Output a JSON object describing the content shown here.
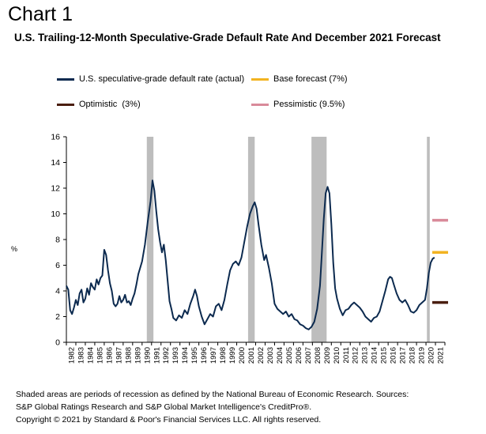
{
  "header": {
    "chart_label": "Chart 1",
    "title": "U.S. Trailing-12-Month Speculative-Grade Default Rate And December 2021 Forecast"
  },
  "footnote": {
    "line1": "Shaded areas are periods of recession as defined by the National Bureau of Economic Research. Sources:",
    "line2": "S&P Global Ratings Research and S&P Global Market Intelligence's CreditPro®.",
    "line3": "Copyright © 2021 by Standard & Poor's Financial Services LLC. All rights reserved."
  },
  "chart_data": {
    "type": "line",
    "ylabel": "%",
    "ylim": [
      0,
      16
    ],
    "yticks": [
      0,
      2,
      4,
      6,
      8,
      10,
      12,
      14,
      16
    ],
    "xlim": [
      1982,
      2022
    ],
    "xticks": [
      "1982",
      "1983",
      "1984",
      "1985",
      "1986",
      "1987",
      "1988",
      "1989",
      "1990",
      "1991",
      "1992",
      "1993",
      "1994",
      "1995",
      "1996",
      "1997",
      "1998",
      "1999",
      "2000",
      "2001",
      "2002",
      "2003",
      "2004",
      "2005",
      "2006",
      "2007",
      "2008",
      "2009",
      "2010",
      "2011",
      "2012",
      "2013",
      "2014",
      "2015",
      "2016",
      "2017",
      "2018",
      "2019",
      "2020",
      "2021"
    ],
    "grid": false,
    "legend_position": "top",
    "recessions": [
      [
        1990.5,
        1991.2
      ],
      [
        2001.2,
        2001.9
      ],
      [
        2007.9,
        2009.5
      ],
      [
        2020.1,
        2020.4
      ]
    ],
    "series": [
      {
        "name": "U.S. speculative-grade default rate (actual)",
        "color": "#0c2a4f",
        "points": [
          [
            1982.0,
            4.4
          ],
          [
            1982.2,
            4.1
          ],
          [
            1982.4,
            2.5
          ],
          [
            1982.6,
            2.2
          ],
          [
            1982.8,
            2.7
          ],
          [
            1983.0,
            3.3
          ],
          [
            1983.2,
            2.9
          ],
          [
            1983.4,
            3.8
          ],
          [
            1983.6,
            4.1
          ],
          [
            1983.8,
            3.1
          ],
          [
            1984.0,
            3.4
          ],
          [
            1984.2,
            4.2
          ],
          [
            1984.4,
            3.7
          ],
          [
            1984.6,
            4.6
          ],
          [
            1984.8,
            4.3
          ],
          [
            1985.0,
            4.1
          ],
          [
            1985.2,
            4.9
          ],
          [
            1985.4,
            4.5
          ],
          [
            1985.6,
            5.0
          ],
          [
            1985.8,
            5.2
          ],
          [
            1986.0,
            7.2
          ],
          [
            1986.2,
            6.8
          ],
          [
            1986.4,
            5.6
          ],
          [
            1986.6,
            4.6
          ],
          [
            1986.8,
            4.0
          ],
          [
            1987.0,
            3.0
          ],
          [
            1987.2,
            2.8
          ],
          [
            1987.4,
            3.0
          ],
          [
            1987.6,
            3.6
          ],
          [
            1987.8,
            3.1
          ],
          [
            1988.0,
            3.3
          ],
          [
            1988.2,
            3.7
          ],
          [
            1988.4,
            3.1
          ],
          [
            1988.6,
            3.2
          ],
          [
            1988.8,
            2.9
          ],
          [
            1989.0,
            3.4
          ],
          [
            1989.2,
            3.8
          ],
          [
            1989.4,
            4.5
          ],
          [
            1989.6,
            5.3
          ],
          [
            1989.8,
            5.8
          ],
          [
            1990.0,
            6.3
          ],
          [
            1990.3,
            7.6
          ],
          [
            1990.6,
            9.4
          ],
          [
            1990.9,
            11.0
          ],
          [
            1991.1,
            12.6
          ],
          [
            1991.3,
            11.8
          ],
          [
            1991.5,
            10.2
          ],
          [
            1991.7,
            8.8
          ],
          [
            1991.9,
            7.8
          ],
          [
            1992.1,
            7.0
          ],
          [
            1992.3,
            7.6
          ],
          [
            1992.5,
            6.4
          ],
          [
            1992.7,
            4.8
          ],
          [
            1992.9,
            3.2
          ],
          [
            1993.1,
            2.6
          ],
          [
            1993.3,
            1.9
          ],
          [
            1993.6,
            1.7
          ],
          [
            1993.9,
            2.1
          ],
          [
            1994.2,
            1.9
          ],
          [
            1994.5,
            2.5
          ],
          [
            1994.8,
            2.2
          ],
          [
            1995.1,
            3.0
          ],
          [
            1995.4,
            3.6
          ],
          [
            1995.6,
            4.1
          ],
          [
            1995.8,
            3.6
          ],
          [
            1996.0,
            2.8
          ],
          [
            1996.3,
            2.0
          ],
          [
            1996.6,
            1.4
          ],
          [
            1996.9,
            1.8
          ],
          [
            1997.2,
            2.2
          ],
          [
            1997.5,
            2.0
          ],
          [
            1997.8,
            2.8
          ],
          [
            1998.1,
            3.0
          ],
          [
            1998.4,
            2.5
          ],
          [
            1998.7,
            3.3
          ],
          [
            1999.0,
            4.5
          ],
          [
            1999.3,
            5.6
          ],
          [
            1999.6,
            6.1
          ],
          [
            1999.9,
            6.3
          ],
          [
            2000.2,
            6.0
          ],
          [
            2000.5,
            6.6
          ],
          [
            2000.8,
            7.8
          ],
          [
            2001.1,
            9.0
          ],
          [
            2001.4,
            10.0
          ],
          [
            2001.7,
            10.6
          ],
          [
            2001.9,
            10.9
          ],
          [
            2002.1,
            10.4
          ],
          [
            2002.3,
            9.2
          ],
          [
            2002.6,
            7.6
          ],
          [
            2002.9,
            6.4
          ],
          [
            2003.1,
            6.8
          ],
          [
            2003.4,
            5.8
          ],
          [
            2003.7,
            4.6
          ],
          [
            2004.0,
            3.0
          ],
          [
            2004.3,
            2.6
          ],
          [
            2004.6,
            2.4
          ],
          [
            2004.9,
            2.2
          ],
          [
            2005.2,
            2.4
          ],
          [
            2005.5,
            2.0
          ],
          [
            2005.8,
            2.2
          ],
          [
            2006.1,
            1.8
          ],
          [
            2006.4,
            1.7
          ],
          [
            2006.7,
            1.4
          ],
          [
            2007.0,
            1.3
          ],
          [
            2007.3,
            1.1
          ],
          [
            2007.6,
            1.0
          ],
          [
            2007.9,
            1.2
          ],
          [
            2008.2,
            1.6
          ],
          [
            2008.5,
            2.6
          ],
          [
            2008.8,
            4.4
          ],
          [
            2009.0,
            7.0
          ],
          [
            2009.2,
            9.6
          ],
          [
            2009.4,
            11.6
          ],
          [
            2009.6,
            12.1
          ],
          [
            2009.8,
            11.6
          ],
          [
            2010.0,
            9.2
          ],
          [
            2010.2,
            6.2
          ],
          [
            2010.4,
            4.2
          ],
          [
            2010.6,
            3.4
          ],
          [
            2010.9,
            2.6
          ],
          [
            2011.2,
            2.1
          ],
          [
            2011.5,
            2.5
          ],
          [
            2011.8,
            2.6
          ],
          [
            2012.1,
            2.9
          ],
          [
            2012.4,
            3.1
          ],
          [
            2012.7,
            2.9
          ],
          [
            2013.0,
            2.7
          ],
          [
            2013.3,
            2.4
          ],
          [
            2013.6,
            2.0
          ],
          [
            2013.9,
            1.8
          ],
          [
            2014.2,
            1.6
          ],
          [
            2014.5,
            1.9
          ],
          [
            2014.8,
            2.0
          ],
          [
            2015.1,
            2.4
          ],
          [
            2015.4,
            3.2
          ],
          [
            2015.7,
            4.0
          ],
          [
            2016.0,
            4.9
          ],
          [
            2016.2,
            5.1
          ],
          [
            2016.4,
            5.0
          ],
          [
            2016.6,
            4.5
          ],
          [
            2016.9,
            3.8
          ],
          [
            2017.2,
            3.3
          ],
          [
            2017.5,
            3.1
          ],
          [
            2017.8,
            3.3
          ],
          [
            2018.1,
            2.9
          ],
          [
            2018.4,
            2.4
          ],
          [
            2018.7,
            2.3
          ],
          [
            2019.0,
            2.5
          ],
          [
            2019.3,
            2.9
          ],
          [
            2019.6,
            3.1
          ],
          [
            2019.9,
            3.3
          ],
          [
            2020.1,
            4.2
          ],
          [
            2020.3,
            5.4
          ],
          [
            2020.5,
            6.2
          ],
          [
            2020.7,
            6.5
          ],
          [
            2020.9,
            6.6
          ]
        ]
      },
      {
        "name": "Base forecast (7%)",
        "color": "#f2b321",
        "value": 7.0,
        "x": 2021
      },
      {
        "name": "Optimistic  (3%)",
        "color": "#4a1e10",
        "value": 3.1,
        "x": 2021
      },
      {
        "name": "Pessimistic (9.5%)",
        "color": "#d98a9a",
        "value": 9.5,
        "x": 2021
      }
    ]
  }
}
